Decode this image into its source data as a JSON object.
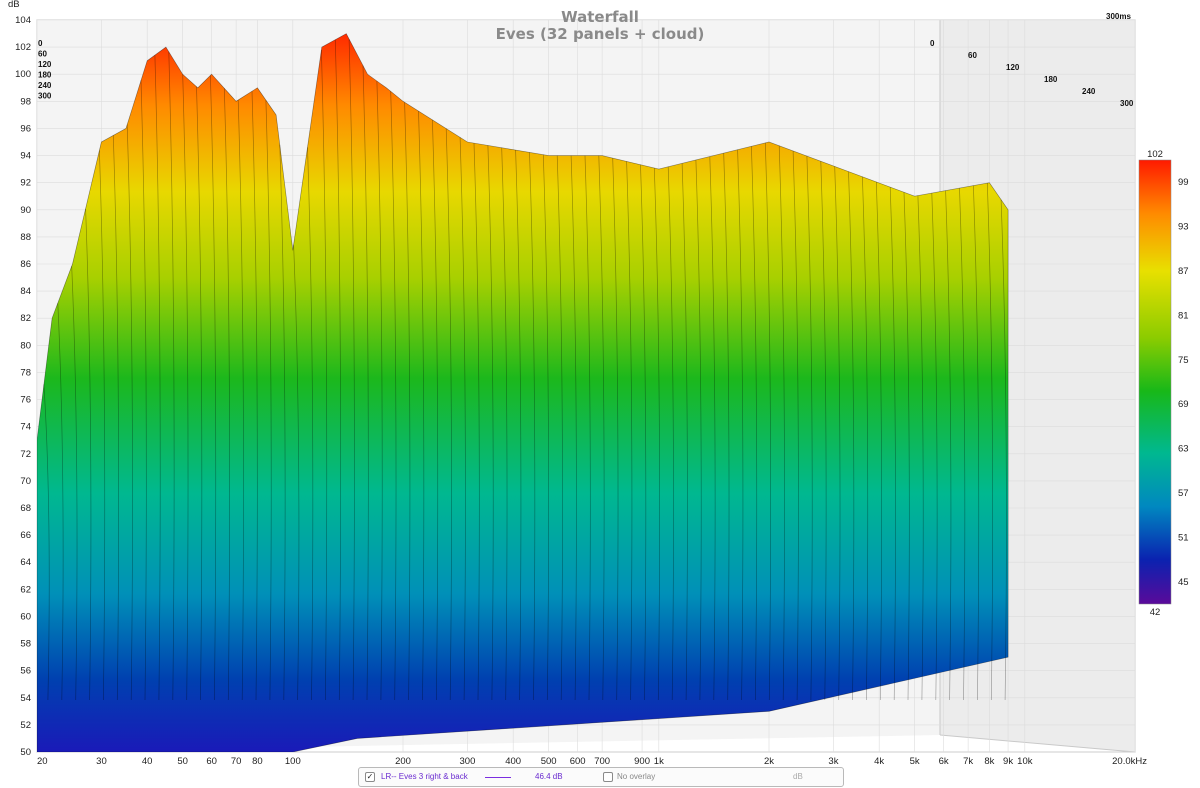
{
  "chart_data": {
    "type": "area",
    "title": "Waterfall",
    "subtitle": "Eves (32 panels + cloud)",
    "ylabel": "dB",
    "ylim": [
      50,
      104
    ],
    "yticks": [
      "50",
      "52",
      "54",
      "56",
      "58",
      "60",
      "62",
      "64",
      "66",
      "68",
      "70",
      "72",
      "74",
      "76",
      "78",
      "80",
      "82",
      "84",
      "86",
      "88",
      "90",
      "92",
      "94",
      "96",
      "98",
      "100",
      "102",
      "104"
    ],
    "xlim": [
      20,
      20000
    ],
    "xscale": "log",
    "xticks": [
      {
        "v": 20,
        "t": "20"
      },
      {
        "v": 30,
        "t": "30"
      },
      {
        "v": 40,
        "t": "40"
      },
      {
        "v": 50,
        "t": "50"
      },
      {
        "v": 60,
        "t": "60"
      },
      {
        "v": 70,
        "t": "70"
      },
      {
        "v": 80,
        "t": "80"
      },
      {
        "v": 100,
        "t": "100"
      },
      {
        "v": 200,
        "t": "200"
      },
      {
        "v": 300,
        "t": "300"
      },
      {
        "v": 400,
        "t": "400"
      },
      {
        "v": 500,
        "t": "500"
      },
      {
        "v": 600,
        "t": "600"
      },
      {
        "v": 700,
        "t": "700"
      },
      {
        "v": 900,
        "t": "900"
      },
      {
        "v": 1000,
        "t": "1k"
      },
      {
        "v": 2000,
        "t": "2k"
      },
      {
        "v": 3000,
        "t": "3k"
      },
      {
        "v": 4000,
        "t": "4k"
      },
      {
        "v": 5000,
        "t": "5k"
      },
      {
        "v": 6000,
        "t": "6k"
      },
      {
        "v": 7000,
        "t": "7k"
      },
      {
        "v": 8000,
        "t": "8k"
      },
      {
        "v": 9000,
        "t": "9k"
      },
      {
        "v": 10000,
        "t": "10k"
      },
      {
        "v": 20000,
        "t": "20.0kHz"
      }
    ],
    "time_axis_unit": "300ms",
    "time_ticks": [
      "0",
      "60",
      "120",
      "180",
      "240",
      "300"
    ],
    "front_spectrum": {
      "freq": [
        20,
        22,
        25,
        30,
        35,
        40,
        45,
        50,
        55,
        60,
        70,
        80,
        90,
        100,
        120,
        140,
        160,
        180,
        200,
        300,
        500,
        700,
        1000,
        2000,
        5000,
        8000,
        9000
      ],
      "db": [
        73,
        82,
        86,
        95,
        96,
        101,
        102,
        100,
        99,
        100,
        98,
        99,
        97,
        87,
        102,
        103,
        100,
        99,
        98,
        95,
        94,
        94,
        93,
        95,
        91,
        92,
        90
      ]
    },
    "scale_db": [
      42,
      45,
      51,
      57,
      63,
      69,
      75,
      81,
      87,
      93,
      99,
      102
    ],
    "scale_labels": [
      "102",
      "99",
      "93",
      "87",
      "81",
      "75",
      "69",
      "63",
      "57",
      "51",
      "45",
      "42"
    ]
  },
  "legend": {
    "checked_mark": "✓",
    "series_label": "LR-- Eves 3 right & back",
    "series_value": "46.4 dB",
    "overlay_label": "No overlay",
    "unit": "dB",
    "series_color": "#7b2ee0"
  }
}
